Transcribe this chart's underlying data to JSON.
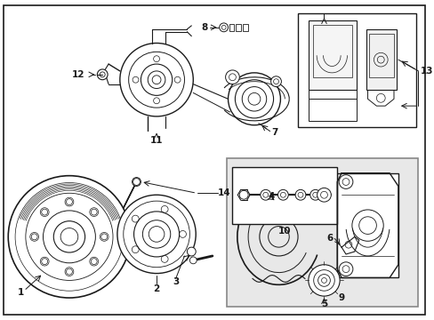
{
  "bg_color": "#ffffff",
  "fig_width": 4.89,
  "fig_height": 3.6,
  "dpi": 100,
  "line_color": "#1a1a1a",
  "label_fontsize": 7.5,
  "box_fill": "#e8e8e8",
  "box_edge": "#888888"
}
